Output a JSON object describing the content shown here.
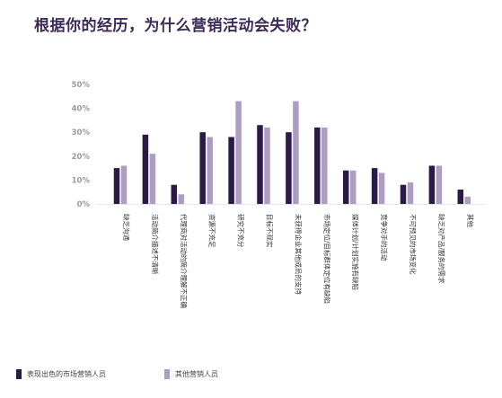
{
  "title": "根据你的经历，为什么营销活动会失败？",
  "colors": {
    "series1": "#2b1a46",
    "series2": "#ad9dc0",
    "text": "#333333",
    "grid": "#dcdcdc",
    "tick": "#9a9a9a"
  },
  "chart_data": {
    "type": "bar",
    "title": "根据你的经历，为什么营销活动会失败？",
    "categories": [
      "缺乏沟通",
      "活动简介描述不清晰",
      "代理商对活动的简介理解不正确",
      "资源不充足",
      "研究不充分",
      "目标不现实",
      "未获得企业其他成员的支持",
      "市场定位/目标群体定位有缺陷",
      "媒体计划/计划实施有缺陷",
      "竞争对手的活动",
      "不可预见的市场变化",
      "缺乏对产品/服务的需求",
      "其他"
    ],
    "series": [
      {
        "name": "表现出色的市场营销人员",
        "values": [
          15,
          29,
          8,
          30,
          28,
          33,
          30,
          32,
          14,
          15,
          8,
          16,
          6
        ]
      },
      {
        "name": "其他营销人员",
        "values": [
          16,
          21,
          4,
          28,
          43,
          32,
          43,
          32,
          14,
          13,
          9,
          16,
          3
        ]
      }
    ],
    "ylim": [
      0,
      50
    ],
    "yticks": [
      "0%",
      "10%",
      "20%",
      "30%",
      "40%",
      "50%"
    ],
    "grid": false,
    "legend_position": "bottom-left"
  }
}
